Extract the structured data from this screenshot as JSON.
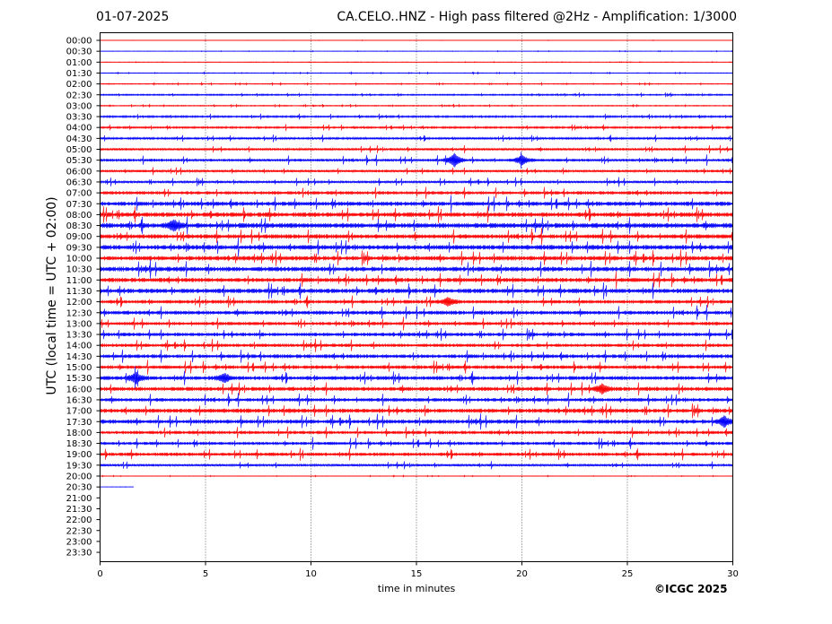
{
  "header": {
    "date": "01-07-2025",
    "title": "CA.CELO..HNZ - High pass filtered @2Hz - Amplification: 1/3000"
  },
  "footer": {
    "copyright": "©ICGC 2025"
  },
  "chart_data": {
    "type": "line",
    "title": "CA.CELO..HNZ - High pass filtered @2Hz - Amplification: 1/3000",
    "xlabel": "time in minutes",
    "ylabel": "UTC (local time = UTC + 02:00)",
    "xlim": [
      0,
      30
    ],
    "xticks": [
      0,
      5,
      10,
      15,
      20,
      25,
      30
    ],
    "grid": "vertical dotted lines at 5-minute intervals",
    "colors": {
      "even_rows": "#ff0000",
      "odd_rows": "#0000ff",
      "grid": "#000000"
    },
    "row_labels": [
      "00:00",
      "00:30",
      "01:00",
      "01:30",
      "02:00",
      "02:30",
      "03:00",
      "03:30",
      "04:00",
      "04:30",
      "05:00",
      "05:30",
      "06:00",
      "06:30",
      "07:00",
      "07:30",
      "08:00",
      "08:30",
      "09:00",
      "09:30",
      "10:00",
      "10:30",
      "11:00",
      "11:30",
      "12:00",
      "12:30",
      "13:00",
      "13:30",
      "14:00",
      "14:30",
      "15:00",
      "15:30",
      "16:00",
      "16:30",
      "17:00",
      "17:30",
      "18:00",
      "18:30",
      "19:00",
      "19:30",
      "20:00",
      "20:30",
      "21:00",
      "21:30",
      "22:00",
      "22:30",
      "23:00",
      "23:30"
    ],
    "rows_with_data_minutes": [
      30,
      30,
      30,
      30,
      30,
      30,
      30,
      30,
      30,
      30,
      30,
      30,
      30,
      30,
      30,
      30,
      30,
      30,
      30,
      30,
      30,
      30,
      30,
      30,
      30,
      30,
      30,
      30,
      30,
      30,
      30,
      30,
      30,
      30,
      30,
      30,
      30,
      30,
      30,
      30,
      30,
      1.6,
      0,
      0,
      0,
      0,
      0,
      0
    ],
    "noise_level": [
      0.02,
      0.03,
      0.03,
      0.05,
      0.07,
      0.12,
      0.08,
      0.15,
      0.15,
      0.18,
      0.22,
      0.25,
      0.22,
      0.22,
      0.3,
      0.38,
      0.4,
      0.45,
      0.38,
      0.42,
      0.4,
      0.42,
      0.38,
      0.4,
      0.32,
      0.35,
      0.3,
      0.32,
      0.3,
      0.34,
      0.32,
      0.35,
      0.36,
      0.32,
      0.38,
      0.36,
      0.3,
      0.28,
      0.3,
      0.22,
      0.04,
      0.02,
      0,
      0,
      0,
      0,
      0,
      0
    ],
    "events": [
      {
        "row": "05:30",
        "minute": 16.8,
        "amplitude": 1.6
      },
      {
        "row": "05:30",
        "minute": 20.0,
        "amplitude": 1.1
      },
      {
        "row": "08:30",
        "minute": 3.5,
        "amplitude": 1.2
      },
      {
        "row": "12:00",
        "minute": 16.5,
        "amplitude": 0.9
      },
      {
        "row": "15:30",
        "minute": 1.7,
        "amplitude": 1.3
      },
      {
        "row": "15:30",
        "minute": 5.9,
        "amplitude": 1.0
      },
      {
        "row": "16:00",
        "minute": 23.8,
        "amplitude": 1.0
      },
      {
        "row": "17:30",
        "minute": 29.6,
        "amplitude": 1.2
      }
    ]
  }
}
